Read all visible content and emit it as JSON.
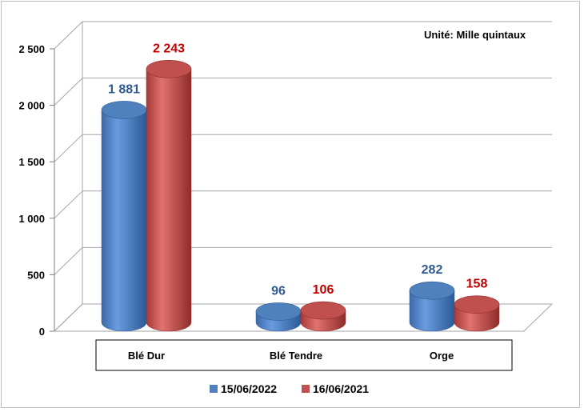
{
  "chart_data": {
    "type": "bar",
    "title": "",
    "unit_note": "Unité: Mille quintaux",
    "categories": [
      "Blé Dur",
      "Blé Tendre",
      "Orge"
    ],
    "series": [
      {
        "name": "15/06/2022",
        "values": [
          1881,
          96,
          282
        ],
        "labels": [
          "1 881",
          "96",
          "282"
        ],
        "color": "#4f81bd",
        "dark": "#2e5c94",
        "label_color": "#2f5a8f"
      },
      {
        "name": "16/06/2021",
        "values": [
          2243,
          106,
          158
        ],
        "labels": [
          "2 243",
          "106",
          "158"
        ],
        "color": "#c0504d",
        "dark": "#8f2f2c",
        "label_color": "#c00000"
      }
    ],
    "yticks": [
      0,
      500,
      1000,
      1500,
      2000,
      2500
    ],
    "ytick_labels": [
      "0",
      "500",
      "1 000",
      "1 500",
      "2 000",
      "2 500"
    ],
    "ylim": [
      0,
      2500
    ],
    "grid": true,
    "legend_position": "bottom"
  }
}
